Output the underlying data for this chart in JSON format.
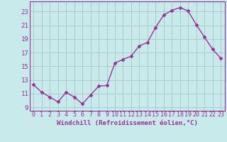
{
  "x": [
    0,
    1,
    2,
    3,
    4,
    5,
    6,
    7,
    8,
    9,
    10,
    11,
    12,
    13,
    14,
    15,
    16,
    17,
    18,
    19,
    20,
    21,
    22,
    23
  ],
  "y": [
    12.3,
    11.2,
    10.5,
    9.8,
    11.2,
    10.5,
    9.5,
    10.8,
    12.1,
    12.2,
    15.5,
    16.0,
    16.5,
    18.0,
    18.5,
    20.7,
    22.5,
    23.2,
    23.6,
    23.1,
    21.1,
    19.3,
    17.5,
    16.2
  ],
  "line_color": "#993399",
  "marker": "D",
  "marker_size": 2.5,
  "bg_color": "#c8eaea",
  "grid_color": "#aacccc",
  "xlabel": "Windchill (Refroidissement éolien,°C)",
  "xlabel_color": "#993399",
  "tick_color": "#993399",
  "ylim": [
    8.5,
    24.5
  ],
  "yticks": [
    9,
    11,
    13,
    15,
    17,
    19,
    21,
    23
  ],
  "xlim": [
    -0.5,
    23.5
  ],
  "xticks": [
    0,
    1,
    2,
    3,
    4,
    5,
    6,
    7,
    8,
    9,
    10,
    11,
    12,
    13,
    14,
    15,
    16,
    17,
    18,
    19,
    20,
    21,
    22,
    23
  ],
  "xtick_labels": [
    "0",
    "1",
    "2",
    "3",
    "4",
    "5",
    "6",
    "7",
    "8",
    "9",
    "10",
    "11",
    "12",
    "13",
    "14",
    "15",
    "16",
    "17",
    "18",
    "19",
    "20",
    "21",
    "22",
    "23"
  ],
  "line_width": 1.0,
  "font_size": 6.5
}
